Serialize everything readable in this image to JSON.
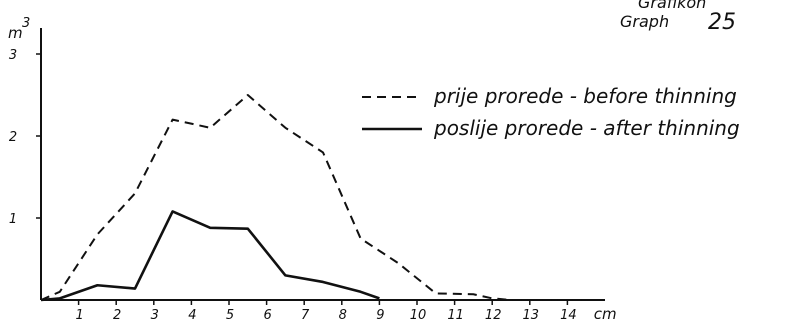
{
  "graph_label": {
    "line1": "Grafikon",
    "line2": "Graph",
    "number": "25"
  },
  "chart_data": {
    "type": "line",
    "title": "",
    "xlabel": "cm",
    "ylabel": "m",
    "ylabel_superscript": "3",
    "x": [
      0,
      0.5,
      1.5,
      2.5,
      3.5,
      4.5,
      5.5,
      6.5,
      7.5,
      8.5,
      9,
      9.5,
      10.5,
      11.5,
      12,
      12.5,
      13.5,
      14.5
    ],
    "xlim": [
      0,
      15
    ],
    "ylim": [
      0,
      3
    ],
    "x_ticks": [
      1,
      2,
      3,
      4,
      5,
      6,
      7,
      8,
      9,
      10,
      11,
      12,
      13,
      14
    ],
    "y_ticks": [
      1,
      2,
      3
    ],
    "grid": false,
    "legend_position": "top-right",
    "series": [
      {
        "name": "prije prorede - before thinning",
        "style": "dashed",
        "color": "#111111",
        "x": [
          0,
          0.5,
          1.5,
          2.5,
          3.5,
          4.5,
          5.5,
          6.5,
          7.5,
          8.5,
          9,
          9.5,
          10.5,
          11.5,
          12,
          12.5,
          13.5,
          14.5
        ],
        "values": [
          0,
          0.1,
          0.8,
          1.3,
          2.2,
          2.1,
          2.5,
          2.1,
          1.8,
          0.75,
          0.6,
          0.45,
          0.08,
          0.07,
          0.02,
          0,
          0,
          0
        ]
      },
      {
        "name": "poslije prorede - after thinning",
        "style": "solid",
        "color": "#111111",
        "x": [
          0,
          0.5,
          1.5,
          2.5,
          3.5,
          4.5,
          5.5,
          6.5,
          7.5,
          8.5,
          9
        ],
        "values": [
          0,
          0.02,
          0.18,
          0.14,
          1.08,
          0.88,
          0.87,
          0.3,
          0.22,
          0.1,
          0.02
        ]
      }
    ]
  }
}
